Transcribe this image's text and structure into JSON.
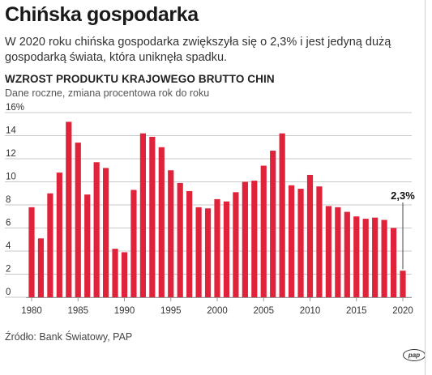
{
  "header": {
    "title": "Chińska gospodarka",
    "subtitle": "W 2020 roku chińska gospodarka zwiększyła się o 2,3% i jest jedyną dużą gospodarką świata, która uniknęła spadku."
  },
  "footer": {
    "source": "Źródło: Bank Światowy, PAP",
    "logo_text": "pap"
  },
  "colors": {
    "bar": "#e0233a",
    "grid": "#c8c8c8",
    "text": "#222222"
  },
  "chart_data": {
    "type": "bar",
    "title": "WZROST PRODUKTU KRAJOWEGO BRUTTO CHIN",
    "subtitle": "Dane roczne, zmiana procentowa rok do roku",
    "categories": [
      1980,
      1981,
      1982,
      1983,
      1984,
      1985,
      1986,
      1987,
      1988,
      1989,
      1990,
      1991,
      1992,
      1993,
      1994,
      1995,
      1996,
      1997,
      1998,
      1999,
      2000,
      2001,
      2002,
      2003,
      2004,
      2005,
      2006,
      2007,
      2008,
      2009,
      2010,
      2011,
      2012,
      2013,
      2014,
      2015,
      2016,
      2017,
      2018,
      2019,
      2020
    ],
    "values": [
      7.8,
      5.1,
      9.0,
      10.8,
      15.2,
      13.4,
      8.9,
      11.7,
      11.2,
      4.2,
      3.9,
      9.3,
      14.2,
      13.9,
      13.0,
      11.0,
      9.9,
      9.2,
      7.8,
      7.7,
      8.5,
      8.3,
      9.1,
      10.0,
      10.1,
      11.4,
      12.7,
      14.2,
      9.7,
      9.4,
      10.6,
      9.6,
      7.9,
      7.8,
      7.4,
      7.0,
      6.8,
      6.9,
      6.7,
      6.0,
      2.3
    ],
    "y_ticks": [
      "16%",
      "14",
      "12",
      "10",
      "8",
      "6",
      "4",
      "2",
      "0"
    ],
    "x_tick_labels": [
      "1980",
      "1985",
      "1990",
      "1995",
      "2000",
      "2005",
      "2010",
      "2015",
      "2020"
    ],
    "ylim": [
      0,
      16
    ],
    "grid": true,
    "annotation": {
      "label": "2,3%",
      "category": 2020
    }
  }
}
